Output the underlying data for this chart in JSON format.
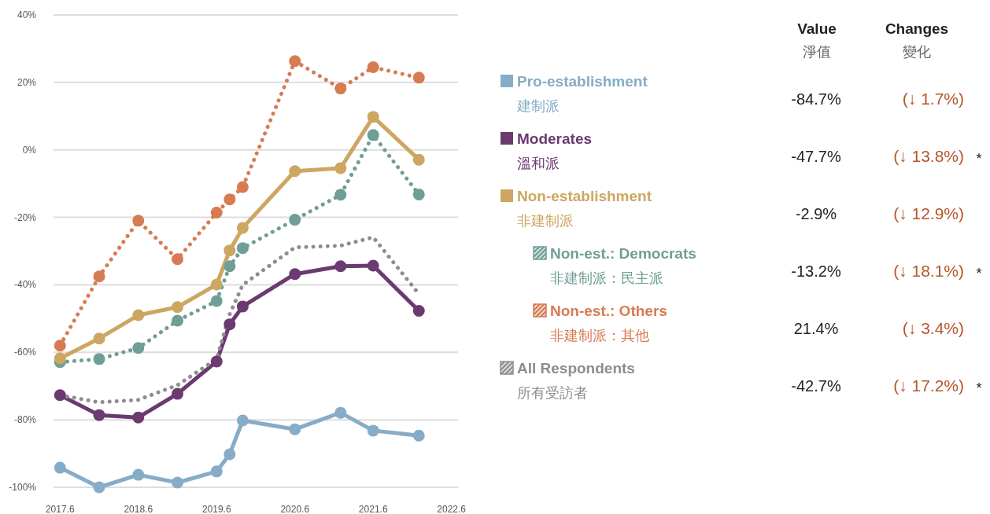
{
  "chart_data": {
    "type": "line",
    "x": [
      "2017-06",
      "2017-12",
      "2018-06",
      "2018-12",
      "2019-06",
      "2019-08",
      "2019-10",
      "2020-06",
      "2021-01",
      "2021-06",
      "2022-01"
    ],
    "series": [
      {
        "name": "Pro-establishment\n建制派",
        "color": "#86acc7",
        "marker": "circle",
        "line_style": "solid",
        "values": [
          -94.2,
          -100,
          -96.3,
          -98.6,
          -95.3,
          -90.2,
          -80.2,
          -82.8,
          -77.9,
          -83.2,
          -84.7
        ]
      },
      {
        "name": "Moderates\n溫和派",
        "color": "#6b3a70",
        "marker": "circle",
        "line_style": "solid",
        "values": [
          -72.7,
          -78.6,
          -79.3,
          -72.3,
          -62.7,
          -51.7,
          -46.4,
          -36.8,
          -34.5,
          -34.3,
          -47.7
        ]
      },
      {
        "name": "Non-establishment\n非建制派",
        "color": "#cda662",
        "marker": "circle",
        "line_style": "solid",
        "values": [
          -61.8,
          -55.9,
          -49.0,
          -46.6,
          -39.9,
          -29.8,
          -23.1,
          -6.3,
          -5.4,
          9.8,
          -2.9
        ]
      },
      {
        "name": "Non-est.: Democrats\n非建制派：民主派",
        "color": "#6e9e95",
        "marker": "circle",
        "line_style": "dotted",
        "values": [
          -62.9,
          -62.0,
          -58.7,
          -50.6,
          -44.8,
          -34.5,
          -29.1,
          -20.7,
          -13.3,
          4.4,
          -13.2
        ]
      },
      {
        "name": "Non-est.: Others\n非建制派：其他",
        "color": "#d77b53",
        "marker": "circle",
        "line_style": "dotted",
        "values": [
          -58.0,
          -37.5,
          -21.0,
          -32.4,
          -18.6,
          -14.7,
          -11.0,
          26.3,
          18.2,
          24.5,
          21.4
        ]
      },
      {
        "name": "All Respondents\n所有受訪者",
        "color": "#8e8c90",
        "marker": "none",
        "line_style": "dotted",
        "values": [
          -72.7,
          -74.8,
          -74.1,
          -69.7,
          -62.0,
          -48.7,
          -40.0,
          -28.9,
          -28.4,
          -25.9,
          -42.7
        ]
      }
    ],
    "xlim": [
      "2017-05",
      "2022-07"
    ],
    "xticks": [
      {
        "value": "2017-06",
        "label": "2017.6"
      },
      {
        "value": "2018-06",
        "label": "2018.6"
      },
      {
        "value": "2019-06",
        "label": "2019.6"
      },
      {
        "value": "2020-06",
        "label": "2020.6"
      },
      {
        "value": "2021-06",
        "label": "2021.6"
      },
      {
        "value": "2022-06",
        "label": "2022.6"
      }
    ],
    "ylim": [
      -100,
      40
    ],
    "yticks": [
      {
        "value": -100,
        "label": "-100%"
      },
      {
        "value": -80,
        "label": "-80%"
      },
      {
        "value": -60,
        "label": "-60%"
      },
      {
        "value": -40,
        "label": "-40%"
      },
      {
        "value": -20,
        "label": "-20%"
      },
      {
        "value": 0,
        "label": "0%"
      },
      {
        "value": 20,
        "label": "20%"
      },
      {
        "value": 40,
        "label": "40%"
      }
    ],
    "grid": "y",
    "legend": "right",
    "annotations": [
      "Value",
      "淨值",
      "Changes",
      "變化",
      "-84.7%",
      "(↓ 1.7%)",
      "-47.7%",
      "(↓ 13.8%)  *",
      "-2.9%",
      "(↓ 12.9%)",
      "-13.2%",
      "(↓ 18.1%)  *",
      "21.4%",
      "(↓ 3.4%)",
      "-42.7%",
      "(↓ 17.2%)  *"
    ]
  }
}
